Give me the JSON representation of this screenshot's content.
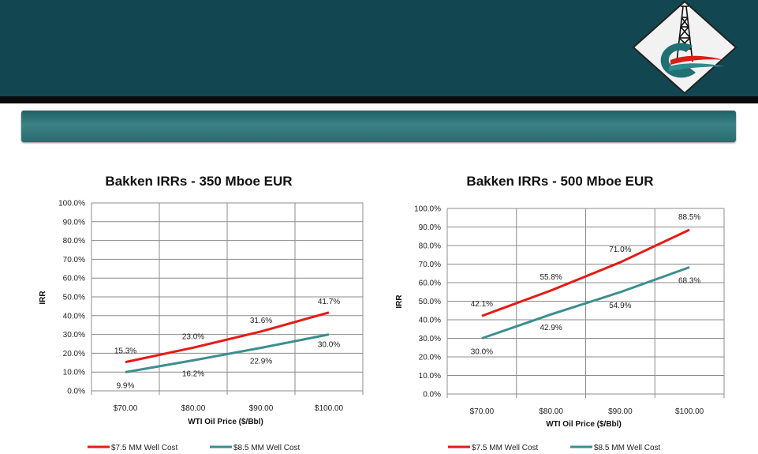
{
  "colors": {
    "header": "#124650",
    "series1": "#e41b17",
    "series2": "#3e8e8e",
    "grid": "#8c8c8c"
  },
  "logo": {
    "icon": "oil-derrick-logo-icon"
  },
  "chart_data": [
    {
      "type": "line",
      "title": "Bakken IRRs - 350 Mboe EUR",
      "xlabel": "WTI Oil Price ($/Bbl)",
      "ylabel": "IRR",
      "categories": [
        "$70.00",
        "$80.00",
        "$90.00",
        "$100.00"
      ],
      "ylim": [
        0,
        100
      ],
      "yticks": [
        "0.0%",
        "10.0%",
        "20.0%",
        "30.0%",
        "40.0%",
        "50.0%",
        "60.0%",
        "70.0%",
        "80.0%",
        "90.0%",
        "100.0%"
      ],
      "grid": true,
      "legend": "bottom",
      "series": [
        {
          "name": "$7.5 MM Well Cost",
          "values": [
            15.3,
            23.0,
            31.6,
            41.7
          ],
          "labels": [
            "15.3%",
            "23.0%",
            "31.6%",
            "41.7%"
          ]
        },
        {
          "name": "$8.5 MM Well Cost",
          "values": [
            9.9,
            16.2,
            22.9,
            30.0
          ],
          "labels": [
            "9.9%",
            "16.2%",
            "22.9%",
            "30.0%"
          ]
        }
      ]
    },
    {
      "type": "line",
      "title": "Bakken IRRs - 500 Mboe EUR",
      "xlabel": "WTI Oil Price ($/Bbl)",
      "ylabel": "IRR",
      "categories": [
        "$70.00",
        "$80.00",
        "$90.00",
        "$100.00"
      ],
      "ylim": [
        0,
        100
      ],
      "yticks": [
        "0.0%",
        "10.0%",
        "20.0%",
        "30.0%",
        "40.0%",
        "50.0%",
        "60.0%",
        "70.0%",
        "80.0%",
        "90.0%",
        "100.0%"
      ],
      "grid": true,
      "legend": "bottom",
      "series": [
        {
          "name": "$7.5 MM Well Cost",
          "values": [
            42.1,
            55.8,
            71.0,
            88.5
          ],
          "labels": [
            "42.1%",
            "55.8%",
            "71.0%",
            "88.5%"
          ]
        },
        {
          "name": "$8.5 MM Well Cost",
          "values": [
            30.0,
            42.9,
            54.9,
            68.3
          ],
          "labels": [
            "30.0%",
            "42.9%",
            "54.9%",
            "68.3%"
          ]
        }
      ]
    }
  ]
}
